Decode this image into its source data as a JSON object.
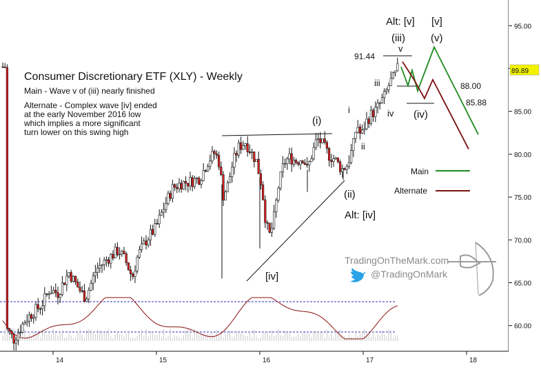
{
  "chart_data": {
    "type": "candlestick",
    "title": "Consumer Discretionary ETF (XLY) - Weekly",
    "notes": [
      "Main - Wave v of (iii) nearly finished",
      "Alternate - Complex wave [iv] ended",
      "at the early November 2016 low",
      "which implies a more significant",
      "turn lower on this swing high"
    ],
    "x_ticks": [
      "14",
      "15",
      "16",
      "17",
      "18"
    ],
    "y_ticks": [
      "95.00",
      "90.00",
      "85.00",
      "80.00",
      "75.00",
      "70.00",
      "65.00",
      "60.00"
    ],
    "ylim": [
      57,
      98
    ],
    "last_price": "89.89",
    "price_labels": {
      "high": "91.44",
      "target1": "88.00",
      "target2": "85.88"
    },
    "wave_labels": {
      "alt_v": "Alt: [v]",
      "v_bracket": "[v]",
      "iii_paren": "(iii)",
      "v_paren": "(v)",
      "v_small": "v",
      "iii_small": "iii",
      "iv_small": "iv",
      "iv_paren": "(iv)",
      "i_paren": "(i)",
      "i_small": "i",
      "ii_small": "ii",
      "ii_paren": "(ii)",
      "alt_iv": "Alt: [iv]",
      "iv_bracket": "[iv]"
    },
    "legend": [
      {
        "name": "Main",
        "color": "#1f8a1f"
      },
      {
        "name": "Alternate",
        "color": "#7a1010"
      }
    ],
    "candle_colors": {
      "up": "#ffffff",
      "down": "#e02020",
      "wick": "#111111"
    },
    "main_projection": [
      [
        90.0,
        88.5
      ],
      [
        89.8,
        87.4
      ],
      [
        92.5,
        86.0
      ],
      [
        82.3,
        84.0
      ]
    ],
    "alternate_projection": [
      [
        90.8,
        88.0
      ],
      [
        86.5,
        88.6
      ],
      [
        88.7,
        86.0
      ],
      [
        80.6,
        83.0
      ]
    ],
    "oscillator": {
      "upper_level": "dashed",
      "lower_level": "dashed",
      "line_color": "#8b1010"
    }
  },
  "watermark": {
    "site": "TradingOnTheMark.com",
    "handle": "@TradingOnMark"
  }
}
